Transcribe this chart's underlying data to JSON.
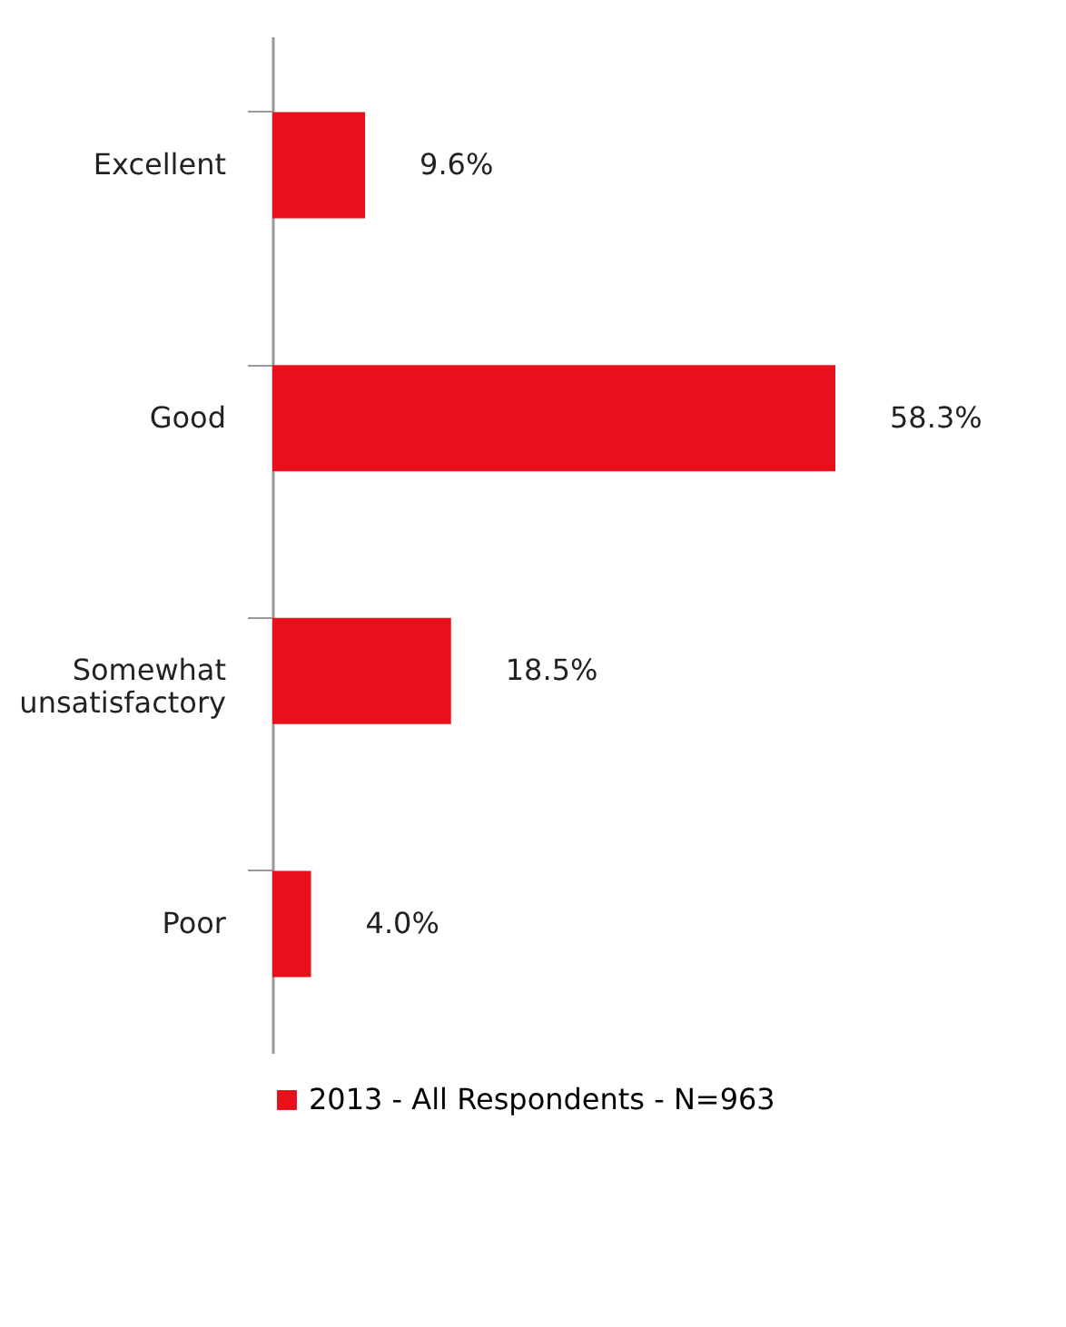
{
  "chart_data": {
    "type": "bar",
    "orientation": "horizontal",
    "categories": [
      "Excellent",
      "Good",
      "Somewhat unsatisfactory",
      "Poor"
    ],
    "series": [
      {
        "name": "2013 - All Respondents - N=963",
        "color": "#e8101a",
        "values": [
          9.6,
          58.3,
          18.5,
          4.0
        ],
        "value_labels": [
          "9.6%",
          "58.3%",
          "18.5%",
          "4.0%"
        ]
      }
    ],
    "legend": "bottom",
    "grid": false
  }
}
